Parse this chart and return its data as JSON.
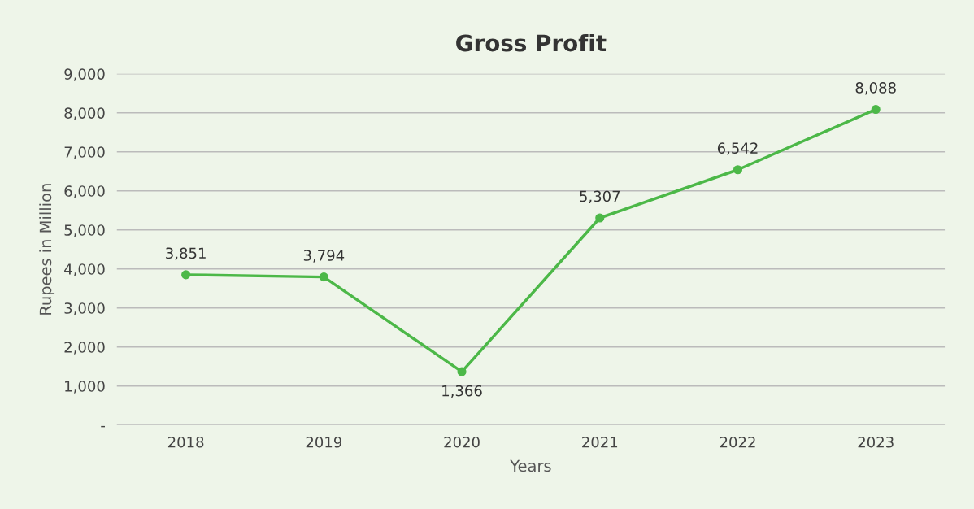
{
  "chart_data": {
    "type": "line",
    "title": "Gross Profit",
    "xlabel": "Years",
    "ylabel": "Rupees in Million",
    "categories": [
      "2018",
      "2019",
      "2020",
      "2021",
      "2022",
      "2023"
    ],
    "series": [
      {
        "color": "#4cb848",
        "values": [
          3851,
          3794,
          1366,
          5307,
          6542,
          8088
        ],
        "value_labels": [
          "3,851",
          "3,794",
          "1,366",
          "5,307",
          "6,542",
          "8,088"
        ]
      }
    ],
    "ylim": [
      0,
      9000
    ],
    "yticks": [
      {
        "value": 0,
        "label": "-"
      },
      {
        "value": 1000,
        "label": "1,000"
      },
      {
        "value": 2000,
        "label": "2,000"
      },
      {
        "value": 3000,
        "label": "3,000"
      },
      {
        "value": 4000,
        "label": "4,000"
      },
      {
        "value": 5000,
        "label": "5,000"
      },
      {
        "value": 6000,
        "label": "6,000"
      },
      {
        "value": 7000,
        "label": "7,000"
      },
      {
        "value": 8000,
        "label": "8,000"
      },
      {
        "value": 9000,
        "label": "9,000"
      }
    ],
    "grid": "y",
    "marker": "circle",
    "line_style": "solid"
  }
}
